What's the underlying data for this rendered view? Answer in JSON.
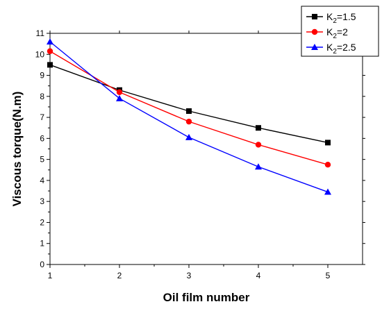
{
  "chart_data": {
    "type": "line",
    "title": "",
    "xlabel": "Oil film number",
    "ylabel": "Viscous torque(N.m)",
    "x": [
      1,
      2,
      3,
      4,
      5
    ],
    "xlim": [
      1,
      5.5
    ],
    "ylim": [
      0,
      11
    ],
    "xticks": [
      1,
      2,
      3,
      4,
      5
    ],
    "yticks": [
      0,
      1,
      2,
      3,
      4,
      5,
      6,
      7,
      8,
      9,
      10,
      11
    ],
    "grid": false,
    "legend_position": "top-right",
    "series": [
      {
        "name": "K2=1.5",
        "legend_main": "K",
        "legend_sub": "2",
        "legend_rest": "=1.5",
        "color": "#000000",
        "marker": "square",
        "values": [
          9.5,
          8.3,
          7.3,
          6.5,
          5.8
        ]
      },
      {
        "name": "K2=2",
        "legend_main": "K",
        "legend_sub": "2",
        "legend_rest": "=2",
        "color": "#ff0000",
        "marker": "circle",
        "values": [
          10.15,
          8.2,
          6.8,
          5.7,
          4.75
        ]
      },
      {
        "name": "K2=2.5",
        "legend_main": "K",
        "legend_sub": "2",
        "legend_rest": "=2.5",
        "color": "#0000ff",
        "marker": "triangle",
        "values": [
          10.6,
          7.9,
          6.05,
          4.65,
          3.45
        ]
      }
    ]
  }
}
